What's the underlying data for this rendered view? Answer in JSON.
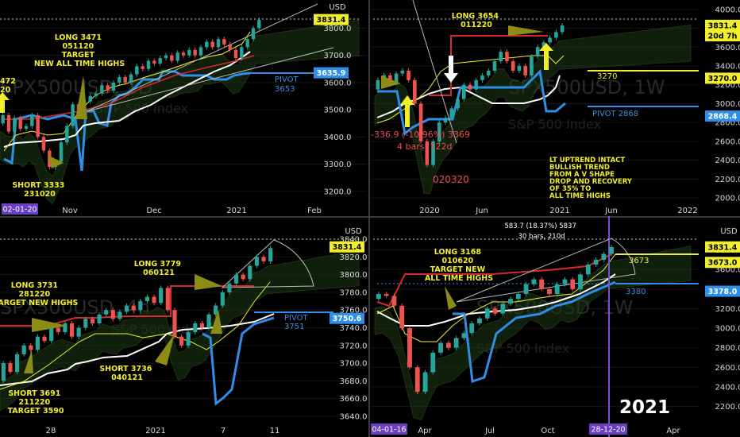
{
  "colors": {
    "up": "#26a69a",
    "down": "#ef5350",
    "yellow": "#f2ef2a",
    "blue": "#2f8fe8",
    "pivot_text": "#3d8ee6",
    "white_line": "#ffffff",
    "red_line": "#d62a2a",
    "cloud": "#1c3a14",
    "purple": "#6a3fc2",
    "axis_text": "#d8d8d8",
    "background": "#000000"
  },
  "year_label": "2021",
  "chart_data": [
    {
      "type": "candlestick",
      "panel": "top-left",
      "watermark": "SPX500USD, 1D",
      "watermark_sub": "S&P 500 Index",
      "y_axis_unit": "USD",
      "ylim": [
        3150,
        3880
      ],
      "y_ticks": [
        3200,
        3300,
        3400,
        3500,
        3600,
        3700,
        3800
      ],
      "x_ticks": [
        "Nov",
        "Dec",
        "2021",
        "Feb"
      ],
      "date_tag": "02-01-20",
      "tags": [
        {
          "text": "3831.4",
          "value": 3831.4,
          "color": "#f2ef2a"
        },
        {
          "text": "3635.9",
          "value": 3635.9,
          "color": "#2f8fe8"
        }
      ],
      "annotations": [
        {
          "text": [
            "LONG 3471",
            "051120",
            "TARGET",
            "NEW ALL TIME HIGHS"
          ],
          "color": "#f2ef2a"
        },
        {
          "text": [
            "SHORT 3333",
            "231020"
          ],
          "color": "#f2ef2a"
        },
        {
          "text": [
            "472",
            "20"
          ],
          "color": "#f2ef2a"
        }
      ],
      "pivot": [
        "PIVOT",
        "3653"
      ],
      "level": 3831.4,
      "candles": [
        {
          "o": 3450,
          "c": 3480
        },
        {
          "o": 3480,
          "c": 3420
        },
        {
          "o": 3420,
          "c": 3470
        },
        {
          "o": 3470,
          "c": 3430
        },
        {
          "o": 3430,
          "c": 3440
        },
        {
          "o": 3440,
          "c": 3480
        },
        {
          "o": 3480,
          "c": 3400
        },
        {
          "o": 3400,
          "c": 3350
        },
        {
          "o": 3350,
          "c": 3290
        },
        {
          "o": 3290,
          "c": 3310
        },
        {
          "o": 3310,
          "c": 3380
        },
        {
          "o": 3380,
          "c": 3440
        },
        {
          "o": 3440,
          "c": 3520
        },
        {
          "o": 3520,
          "c": 3500
        },
        {
          "o": 3500,
          "c": 3530
        },
        {
          "o": 3530,
          "c": 3550
        },
        {
          "o": 3550,
          "c": 3560
        },
        {
          "o": 3560,
          "c": 3590
        },
        {
          "o": 3590,
          "c": 3570
        },
        {
          "o": 3570,
          "c": 3600
        },
        {
          "o": 3600,
          "c": 3620
        },
        {
          "o": 3620,
          "c": 3600
        },
        {
          "o": 3600,
          "c": 3630
        },
        {
          "o": 3630,
          "c": 3660
        },
        {
          "o": 3660,
          "c": 3650
        },
        {
          "o": 3650,
          "c": 3680
        },
        {
          "o": 3680,
          "c": 3670
        },
        {
          "o": 3670,
          "c": 3690
        },
        {
          "o": 3690,
          "c": 3700
        },
        {
          "o": 3700,
          "c": 3680
        },
        {
          "o": 3680,
          "c": 3710
        },
        {
          "o": 3710,
          "c": 3700
        },
        {
          "o": 3700,
          "c": 3720
        },
        {
          "o": 3720,
          "c": 3700
        },
        {
          "o": 3700,
          "c": 3730
        },
        {
          "o": 3730,
          "c": 3750
        },
        {
          "o": 3750,
          "c": 3730
        },
        {
          "o": 3730,
          "c": 3760
        },
        {
          "o": 3760,
          "c": 3740
        },
        {
          "o": 3740,
          "c": 3720
        },
        {
          "o": 3720,
          "c": 3690
        },
        {
          "o": 3690,
          "c": 3730
        },
        {
          "o": 3730,
          "c": 3760
        },
        {
          "o": 3760,
          "c": 3800
        },
        {
          "o": 3800,
          "c": 3830
        }
      ]
    },
    {
      "type": "candlestick",
      "panel": "top-right",
      "watermark": "SPX500USD, 1W",
      "watermark_sub": "S&P 500 Index",
      "ylim": [
        1950,
        4100
      ],
      "y_ticks": [
        2000,
        2200,
        2400,
        2600,
        2800,
        3000,
        3200,
        3400,
        3600,
        3800,
        4000
      ],
      "x_ticks": [
        "2020",
        "Jun",
        "2021",
        "Jun",
        "2022"
      ],
      "tags": [
        {
          "text": "3831.4",
          "value": 3831.4,
          "color": "#f2ef2a"
        },
        {
          "text": "20d 7h",
          "value": 3720,
          "color": "#f2ef2a"
        },
        {
          "text": "3270.0",
          "value": 3270,
          "color": "#f2ef2a"
        },
        {
          "text": "2868.4",
          "value": 2868.4,
          "color": "#2f8fe8"
        }
      ],
      "annotations": [
        {
          "text": [
            "LONG 3654",
            "011220"
          ],
          "color": "#f2ef2a"
        },
        {
          "text": [
            "LT UPTREND INTACT",
            "BULLISH TREND",
            "FROM A V SHAPE",
            "DROP AND RECOVERY",
            "OF 35% TO",
            "ALL TIME HIGHS"
          ],
          "color": "#f2ef2a"
        }
      ],
      "level_label": "3270",
      "pivot": [
        "PIVOT 2868"
      ],
      "measure": {
        "lines": [
          "-336.9 (-10.96%) 3369",
          "4 bars, 122d"
        ],
        "color": "#f04b54"
      },
      "date_label": "020320",
      "candles": [
        {
          "o": 3150,
          "c": 3250
        },
        {
          "o": 3250,
          "c": 3300
        },
        {
          "o": 3300,
          "c": 3220
        },
        {
          "o": 3220,
          "c": 3320
        },
        {
          "o": 3320,
          "c": 3350
        },
        {
          "o": 3350,
          "c": 3250
        },
        {
          "o": 3250,
          "c": 3000
        },
        {
          "o": 3000,
          "c": 2600
        },
        {
          "o": 2600,
          "c": 2350
        },
        {
          "o": 2350,
          "c": 2600
        },
        {
          "o": 2600,
          "c": 2800
        },
        {
          "o": 2800,
          "c": 2850
        },
        {
          "o": 2850,
          "c": 2950
        },
        {
          "o": 2950,
          "c": 3050
        },
        {
          "o": 3050,
          "c": 3200
        },
        {
          "o": 3200,
          "c": 3150
        },
        {
          "o": 3150,
          "c": 3250
        },
        {
          "o": 3250,
          "c": 3300
        },
        {
          "o": 3300,
          "c": 3350
        },
        {
          "o": 3350,
          "c": 3450
        },
        {
          "o": 3450,
          "c": 3550
        },
        {
          "o": 3550,
          "c": 3450
        },
        {
          "o": 3450,
          "c": 3350
        },
        {
          "o": 3350,
          "c": 3400
        },
        {
          "o": 3400,
          "c": 3300
        },
        {
          "o": 3300,
          "c": 3500
        },
        {
          "o": 3500,
          "c": 3600
        },
        {
          "o": 3600,
          "c": 3650
        },
        {
          "o": 3650,
          "c": 3700
        },
        {
          "o": 3700,
          "c": 3760
        },
        {
          "o": 3760,
          "c": 3830
        }
      ]
    },
    {
      "type": "candlestick",
      "panel": "bottom-left",
      "watermark": "SPX500USD, 4h",
      "watermark_sub": "S&P 500 Index",
      "y_axis_unit": "USD",
      "ylim": [
        3630,
        3850
      ],
      "y_ticks": [
        3640,
        3660,
        3680,
        3700,
        3720,
        3740,
        3760,
        3780,
        3800,
        3820,
        3840
      ],
      "x_ticks": [
        "28",
        "2021",
        "7",
        "11"
      ],
      "tags": [
        {
          "text": "3831.4",
          "value": 3831.4,
          "color": "#f2ef2a"
        },
        {
          "text": "3750.6",
          "value": 3750.6,
          "color": "#2f8fe8"
        }
      ],
      "annotations": [
        {
          "text": [
            "LONG 3731",
            "281220",
            "TARGET NEW HIGHS"
          ],
          "color": "#f2ef2a"
        },
        {
          "text": [
            "LONG 3779",
            "060121"
          ],
          "color": "#f2ef2a"
        },
        {
          "text": [
            "SHORT 3736",
            "040121"
          ],
          "color": "#f2ef2a"
        },
        {
          "text": [
            "SHORT 3691",
            "211220",
            "TARGET 3590"
          ],
          "color": "#f2ef2a"
        }
      ],
      "pivot": [
        "PIVOT",
        "3751"
      ],
      "candles": [
        {
          "o": 3680,
          "c": 3700
        },
        {
          "o": 3700,
          "c": 3690
        },
        {
          "o": 3690,
          "c": 3710
        },
        {
          "o": 3710,
          "c": 3720
        },
        {
          "o": 3720,
          "c": 3715
        },
        {
          "o": 3715,
          "c": 3730
        },
        {
          "o": 3730,
          "c": 3725
        },
        {
          "o": 3725,
          "c": 3740
        },
        {
          "o": 3740,
          "c": 3735
        },
        {
          "o": 3735,
          "c": 3745
        },
        {
          "o": 3745,
          "c": 3730
        },
        {
          "o": 3730,
          "c": 3740
        },
        {
          "o": 3740,
          "c": 3750
        },
        {
          "o": 3750,
          "c": 3745
        },
        {
          "o": 3745,
          "c": 3755
        },
        {
          "o": 3755,
          "c": 3760
        },
        {
          "o": 3760,
          "c": 3750
        },
        {
          "o": 3750,
          "c": 3758
        },
        {
          "o": 3758,
          "c": 3765
        },
        {
          "o": 3765,
          "c": 3760
        },
        {
          "o": 3760,
          "c": 3770
        },
        {
          "o": 3770,
          "c": 3775
        },
        {
          "o": 3775,
          "c": 3768
        },
        {
          "o": 3768,
          "c": 3785
        },
        {
          "o": 3785,
          "c": 3760
        },
        {
          "o": 3760,
          "c": 3730
        },
        {
          "o": 3730,
          "c": 3720
        },
        {
          "o": 3720,
          "c": 3735
        },
        {
          "o": 3735,
          "c": 3745
        },
        {
          "o": 3745,
          "c": 3740
        },
        {
          "o": 3740,
          "c": 3755
        },
        {
          "o": 3755,
          "c": 3765
        },
        {
          "o": 3765,
          "c": 3780
        },
        {
          "o": 3780,
          "c": 3790
        },
        {
          "o": 3790,
          "c": 3800
        },
        {
          "o": 3800,
          "c": 3795
        },
        {
          "o": 3795,
          "c": 3810
        },
        {
          "o": 3810,
          "c": 3820
        },
        {
          "o": 3820,
          "c": 3815
        },
        {
          "o": 3815,
          "c": 3830
        }
      ]
    },
    {
      "type": "candlestick",
      "panel": "bottom-right",
      "watermark": "SPX500USD, 1W",
      "watermark_sub": "S&P 500 Index",
      "y_axis_unit": "USD",
      "ylim": [
        2050,
        4000
      ],
      "y_ticks": [
        2200,
        2400,
        2600,
        2800,
        3000,
        3200,
        3400,
        3600,
        3800
      ],
      "x_ticks": [
        "Apr",
        "Jul",
        "Oct",
        "Apr"
      ],
      "date_tags": [
        "04-01-16",
        "28-12-20"
      ],
      "tags": [
        {
          "text": "3831.4",
          "value": 3831.4,
          "color": "#f2ef2a"
        },
        {
          "text": "3673.0",
          "value": 3673,
          "color": "#f2ef2a"
        },
        {
          "text": "3378.0",
          "value": 3378,
          "color": "#2f8fe8"
        }
      ],
      "annotations": [
        {
          "text": [
            "LONG 3168",
            "010620",
            "TARGET NEW",
            "ALL TIME HIGHS"
          ],
          "color": "#f2ef2a"
        }
      ],
      "level_label": "3673",
      "pivot": [
        "3380"
      ],
      "measure": {
        "lines": [
          "583.7 (18.37%) 5837",
          "30 bars, 210d"
        ],
        "color": "#ffffff"
      },
      "candles": [
        {
          "o": 3300,
          "c": 3350
        },
        {
          "o": 3350,
          "c": 3330
        },
        {
          "o": 3330,
          "c": 3230
        },
        {
          "o": 3230,
          "c": 3000
        },
        {
          "o": 3000,
          "c": 2600
        },
        {
          "o": 2600,
          "c": 2350
        },
        {
          "o": 2350,
          "c": 2550
        },
        {
          "o": 2550,
          "c": 2750
        },
        {
          "o": 2750,
          "c": 2850
        },
        {
          "o": 2850,
          "c": 2800
        },
        {
          "o": 2800,
          "c": 2900
        },
        {
          "o": 2900,
          "c": 2950
        },
        {
          "o": 2950,
          "c": 3050
        },
        {
          "o": 3050,
          "c": 3100
        },
        {
          "o": 3100,
          "c": 3200
        },
        {
          "o": 3200,
          "c": 3150
        },
        {
          "o": 3150,
          "c": 3250
        },
        {
          "o": 3250,
          "c": 3300
        },
        {
          "o": 3300,
          "c": 3350
        },
        {
          "o": 3350,
          "c": 3450
        },
        {
          "o": 3450,
          "c": 3500
        },
        {
          "o": 3500,
          "c": 3400
        },
        {
          "o": 3400,
          "c": 3350
        },
        {
          "o": 3350,
          "c": 3450
        },
        {
          "o": 3450,
          "c": 3500
        },
        {
          "o": 3500,
          "c": 3400
        },
        {
          "o": 3400,
          "c": 3550
        },
        {
          "o": 3550,
          "c": 3650
        },
        {
          "o": 3650,
          "c": 3700
        },
        {
          "o": 3700,
          "c": 3760
        },
        {
          "o": 3760,
          "c": 3830
        }
      ]
    }
  ]
}
